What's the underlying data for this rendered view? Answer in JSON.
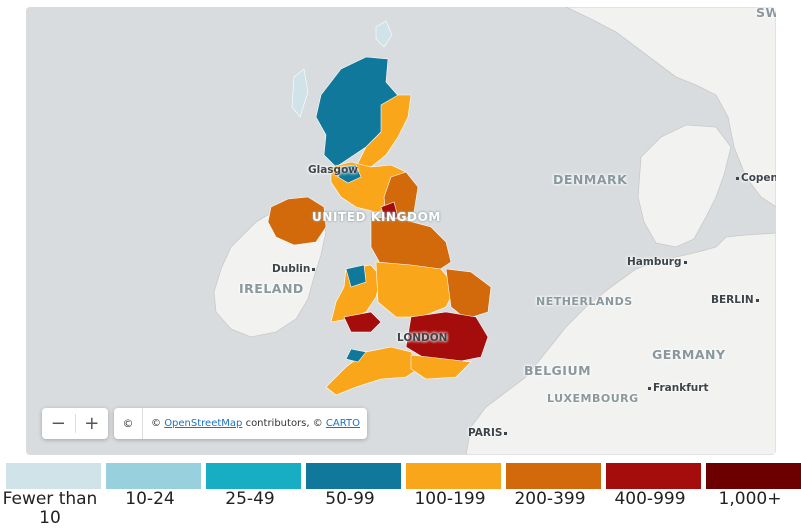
{
  "map": {
    "labels": {
      "united_kingdom": "UNITED KINGDOM",
      "ireland": "IRELAND",
      "denmark": "DENMARK",
      "netherlands": "NETHERLANDS",
      "belgium": "BELGIUM",
      "luxembourg": "LUXEMBOURG",
      "germany": "GERMANY",
      "sweden_partial": "SWE",
      "glasgow": "Glasgow",
      "dublin": "Dublin",
      "london": "LONDON",
      "hamburg": "Hamburg",
      "berlin": "BERLIN",
      "frankfurt": "Frankfurt",
      "paris": "PARIS",
      "copenhagen_partial": "Copenh"
    },
    "colors": {
      "sea": "#d9dcde",
      "land": "#f2f2f0",
      "border": "#c9c9c9"
    }
  },
  "zoom": {
    "out_label": "−",
    "in_label": "+"
  },
  "attribution": {
    "copyright_button": "©",
    "prefix": "© ",
    "osm_link": "OpenStreetMap",
    "middle": " contributors, © ",
    "carto_link": "CARTO"
  },
  "legend": [
    {
      "label": "Fewer than 10",
      "color": "#cfe3e9"
    },
    {
      "label": "10-24",
      "color": "#98d0dd"
    },
    {
      "label": "25-49",
      "color": "#17aec3"
    },
    {
      "label": "50-99",
      "color": "#10789a"
    },
    {
      "label": "100-199",
      "color": "#faa61a"
    },
    {
      "label": "200-399",
      "color": "#d26a0b"
    },
    {
      "label": "400-999",
      "color": "#a50c0c"
    },
    {
      "label": "1,000+",
      "color": "#6c0000"
    }
  ]
}
